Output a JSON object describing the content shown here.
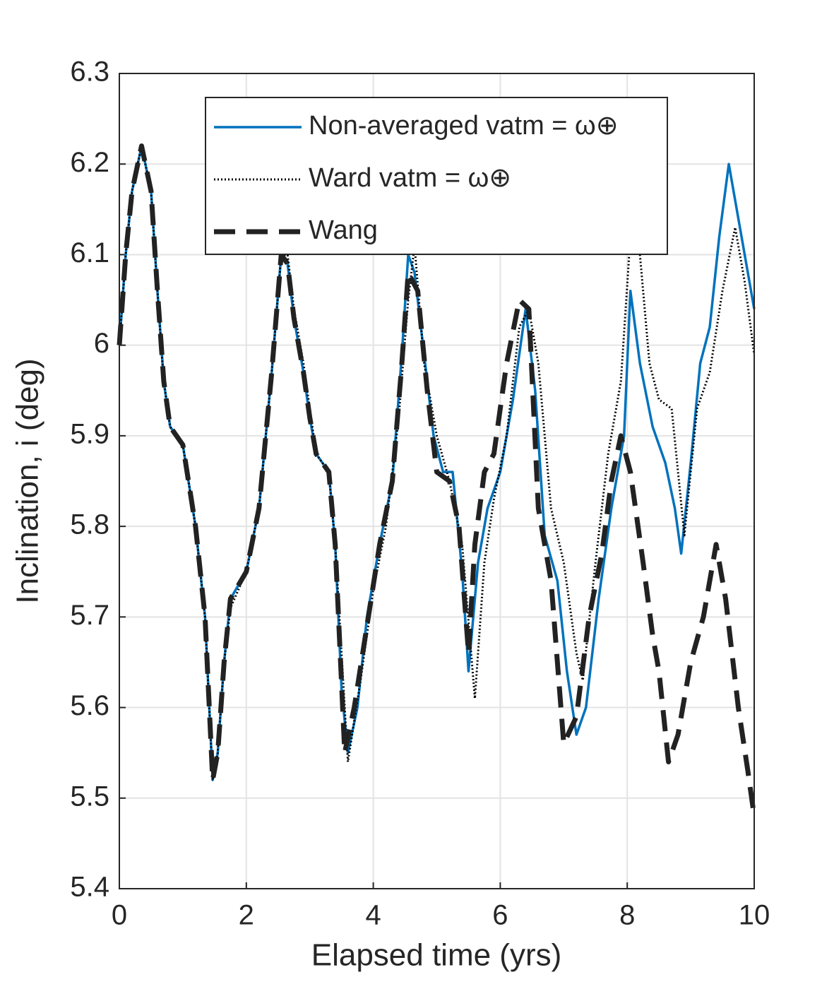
{
  "chart_data": {
    "type": "line",
    "xlabel": "Elapsed time (yrs)",
    "ylabel": "Inclination, i (deg)",
    "xlim": [
      0,
      10
    ],
    "xticks": [
      0,
      2,
      4,
      6,
      8,
      10
    ],
    "ylim": [
      5.4,
      6.3
    ],
    "yticks": [
      5.4,
      5.5,
      5.6,
      5.7,
      5.8,
      5.9,
      6,
      6.1,
      6.2,
      6.3
    ],
    "grid": true,
    "legend": "top",
    "series": [
      {
        "name": "Non-averaged vatm = ω⊕",
        "color": "#0072bd",
        "style": "solid",
        "x": [
          0,
          0.1,
          0.2,
          0.35,
          0.5,
          0.6,
          0.7,
          0.8,
          1.0,
          1.2,
          1.35,
          1.47,
          1.55,
          1.65,
          1.75,
          2.0,
          2.2,
          2.4,
          2.55,
          2.65,
          2.75,
          2.9,
          3.0,
          3.1,
          3.3,
          3.4,
          3.5,
          3.6,
          3.75,
          3.9,
          4.1,
          4.3,
          4.45,
          4.55,
          4.65,
          4.8,
          4.95,
          5.1,
          5.25,
          5.4,
          5.5,
          5.65,
          5.8,
          6.0,
          6.2,
          6.4,
          6.55,
          6.7,
          6.9,
          7.05,
          7.2,
          7.35,
          7.55,
          7.75,
          7.95,
          8.05,
          8.2,
          8.4,
          8.6,
          8.75,
          8.85,
          9.0,
          9.15,
          9.3,
          9.45,
          9.6,
          9.75,
          9.9,
          10
        ],
        "values": [
          6.0,
          6.1,
          6.17,
          6.22,
          6.17,
          6.06,
          5.96,
          5.91,
          5.89,
          5.8,
          5.7,
          5.52,
          5.55,
          5.65,
          5.72,
          5.75,
          5.82,
          5.97,
          6.1,
          6.09,
          6.03,
          5.97,
          5.92,
          5.88,
          5.86,
          5.78,
          5.62,
          5.55,
          5.6,
          5.7,
          5.78,
          5.85,
          5.99,
          6.1,
          6.08,
          5.99,
          5.9,
          5.86,
          5.86,
          5.75,
          5.64,
          5.76,
          5.82,
          5.86,
          5.94,
          6.04,
          5.95,
          5.79,
          5.74,
          5.64,
          5.57,
          5.6,
          5.72,
          5.82,
          5.9,
          6.06,
          5.98,
          5.91,
          5.87,
          5.82,
          5.77,
          5.87,
          5.98,
          6.02,
          6.12,
          6.2,
          6.14,
          6.08,
          6.04
        ]
      },
      {
        "name": "Ward vatm = ω⊕",
        "color": "#000000",
        "style": "dotted",
        "x": [
          0,
          0.1,
          0.2,
          0.35,
          0.5,
          0.6,
          0.7,
          0.8,
          1.0,
          1.2,
          1.35,
          1.47,
          1.55,
          1.65,
          1.75,
          2.0,
          2.2,
          2.4,
          2.55,
          2.65,
          2.75,
          2.9,
          3.0,
          3.1,
          3.3,
          3.4,
          3.6,
          3.8,
          4.0,
          4.2,
          4.4,
          4.55,
          4.65,
          4.8,
          5.0,
          5.2,
          5.4,
          5.6,
          5.75,
          5.9,
          6.1,
          6.3,
          6.45,
          6.6,
          6.8,
          7.0,
          7.2,
          7.3,
          7.5,
          7.7,
          7.9,
          8.05,
          8.2,
          8.35,
          8.5,
          8.7,
          8.9,
          9.1,
          9.3,
          9.5,
          9.7,
          9.85,
          10
        ],
        "values": [
          6.0,
          6.1,
          6.17,
          6.22,
          6.17,
          6.06,
          5.96,
          5.91,
          5.89,
          5.8,
          5.7,
          5.52,
          5.55,
          5.65,
          5.71,
          5.75,
          5.82,
          5.97,
          6.1,
          6.1,
          6.04,
          5.98,
          5.93,
          5.88,
          5.86,
          5.78,
          5.54,
          5.63,
          5.73,
          5.8,
          5.92,
          6.05,
          6.11,
          5.98,
          5.9,
          5.85,
          5.78,
          5.61,
          5.76,
          5.83,
          5.9,
          6.02,
          6.04,
          5.98,
          5.82,
          5.76,
          5.66,
          5.63,
          5.76,
          5.88,
          5.96,
          6.12,
          6.1,
          5.98,
          5.94,
          5.93,
          5.79,
          5.93,
          5.97,
          6.06,
          6.13,
          6.07,
          5.99
        ]
      },
      {
        "name": "Wang",
        "color": "#222222",
        "style": "dashed",
        "x": [
          0,
          0.1,
          0.2,
          0.35,
          0.5,
          0.6,
          0.7,
          0.8,
          1.0,
          1.2,
          1.35,
          1.47,
          1.55,
          1.65,
          1.75,
          2.0,
          2.2,
          2.4,
          2.55,
          2.65,
          2.75,
          2.9,
          3.0,
          3.1,
          3.3,
          3.4,
          3.55,
          3.7,
          3.9,
          4.1,
          4.3,
          4.45,
          4.55,
          4.7,
          4.85,
          5.0,
          5.2,
          5.35,
          5.5,
          5.6,
          5.75,
          5.9,
          6.1,
          6.3,
          6.45,
          6.6,
          6.8,
          7.0,
          7.2,
          7.4,
          7.6,
          7.75,
          7.9,
          8.05,
          8.25,
          8.4,
          8.5,
          8.65,
          8.8,
          9.0,
          9.2,
          9.4,
          9.55,
          9.75,
          9.9,
          10
        ],
        "values": [
          6.0,
          6.1,
          6.17,
          6.22,
          6.17,
          6.06,
          5.96,
          5.91,
          5.89,
          5.8,
          5.7,
          5.52,
          5.55,
          5.65,
          5.72,
          5.75,
          5.82,
          5.97,
          6.1,
          6.09,
          6.03,
          5.97,
          5.92,
          5.88,
          5.86,
          5.78,
          5.55,
          5.6,
          5.69,
          5.78,
          5.85,
          5.98,
          6.08,
          6.06,
          5.95,
          5.86,
          5.85,
          5.8,
          5.66,
          5.78,
          5.86,
          5.88,
          5.98,
          6.05,
          6.04,
          5.82,
          5.74,
          5.56,
          5.59,
          5.7,
          5.77,
          5.85,
          5.9,
          5.86,
          5.76,
          5.68,
          5.64,
          5.54,
          5.57,
          5.65,
          5.7,
          5.78,
          5.72,
          5.6,
          5.53,
          5.48
        ]
      }
    ]
  }
}
